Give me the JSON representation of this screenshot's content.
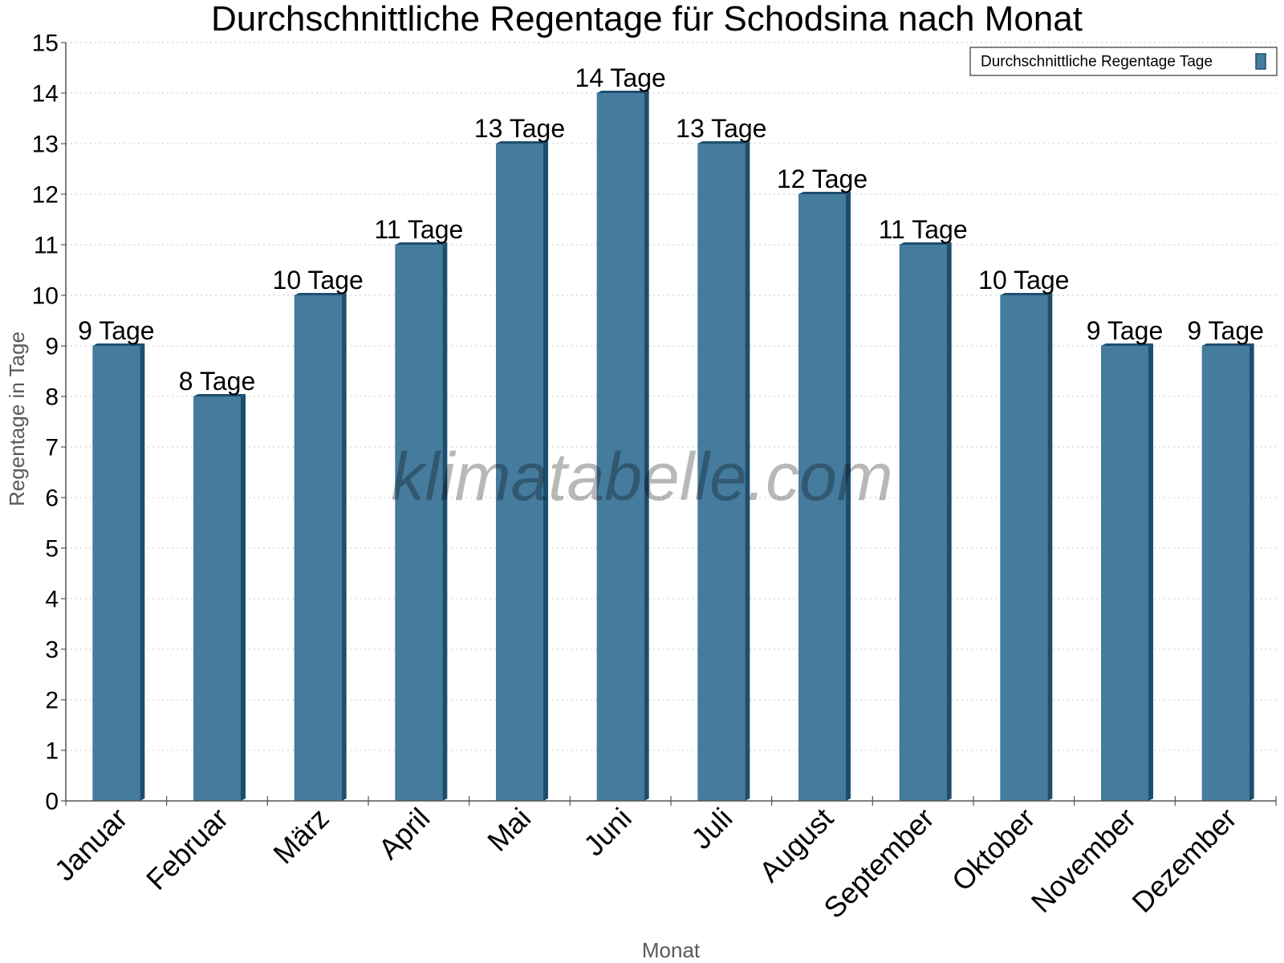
{
  "chart_data": {
    "type": "bar",
    "title": "Durchschnittliche Regentage für Schodsina nach Monat",
    "xlabel": "Monat",
    "ylabel": "Regentage in Tage",
    "categories": [
      "Januar",
      "Februar",
      "März",
      "April",
      "Mai",
      "Juni",
      "Juli",
      "August",
      "September",
      "Oktober",
      "November",
      "Dezember"
    ],
    "series": [
      {
        "name": "Durchschnittliche Regentage Tage",
        "values": [
          9,
          8,
          10,
          11,
          13,
          14,
          13,
          12,
          11,
          10,
          9,
          9
        ],
        "labels": [
          "9 Tage",
          "8 Tage",
          "10 Tage",
          "11 Tage",
          "13 Tage",
          "14 Tage",
          "13 Tage",
          "12 Tage",
          "11 Tage",
          "10 Tage",
          "9 Tage",
          "9 Tage"
        ]
      }
    ],
    "ylim": [
      0,
      15
    ],
    "yticks": [
      "0",
      "1",
      "2",
      "3",
      "4",
      "5",
      "6",
      "7",
      "8",
      "9",
      "10",
      "11",
      "12",
      "13",
      "14",
      "15"
    ],
    "grid": true,
    "legend": "top-right",
    "colors": {
      "bar": "#457b9d",
      "bar_side": "#1d4e6f",
      "bar_top": "#1d4e6f",
      "grid": "#c8c8c8",
      "axis": "#555555"
    },
    "watermark": "klimatabelle.com"
  }
}
